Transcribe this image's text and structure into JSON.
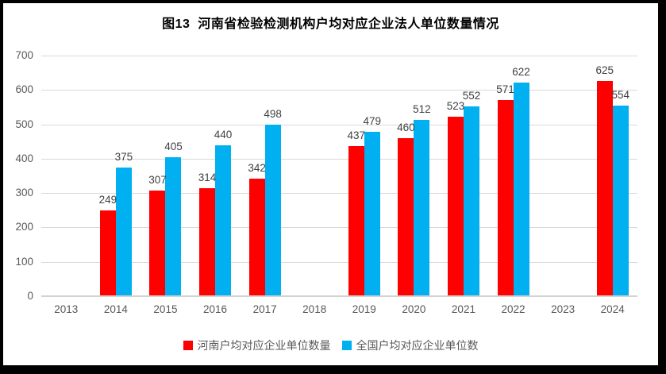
{
  "title": "图13  河南省检验检测机构户均对应企业法人单位数量情况",
  "colors": {
    "henan_red": "#FF0000",
    "national_blue": "#00B0F0",
    "gridline": "#D9D9D9",
    "axis_line": "#D2D2D2",
    "axis_label": "#595959",
    "data_label": "#404040",
    "title_text": "#000000",
    "frame": "#000000",
    "background": "#FFFFFF"
  },
  "chart_data": {
    "type": "bar",
    "title": "图13  河南省检验检测机构户均对应企业法人单位数量情况",
    "categories": [
      "2013",
      "2014",
      "2015",
      "2016",
      "2017",
      "2018",
      "2019",
      "2020",
      "2021",
      "2022",
      "2023",
      "2024"
    ],
    "series": [
      {
        "name": "河南户均对应企业单位数量",
        "color": "#FF0000",
        "values": [
          null,
          249,
          307,
          314,
          342,
          null,
          437,
          460,
          523,
          571,
          null,
          625
        ]
      },
      {
        "name": "全国户均对应企业单位数",
        "color": "#00B0F0",
        "values": [
          null,
          375,
          405,
          440,
          498,
          null,
          479,
          512,
          552,
          622,
          null,
          554
        ]
      }
    ],
    "xlabel": "",
    "ylabel": "",
    "ylim": [
      0,
      700
    ],
    "ytick_step": 100,
    "grid": true,
    "legend_position": "bottom",
    "data_labels": true
  }
}
